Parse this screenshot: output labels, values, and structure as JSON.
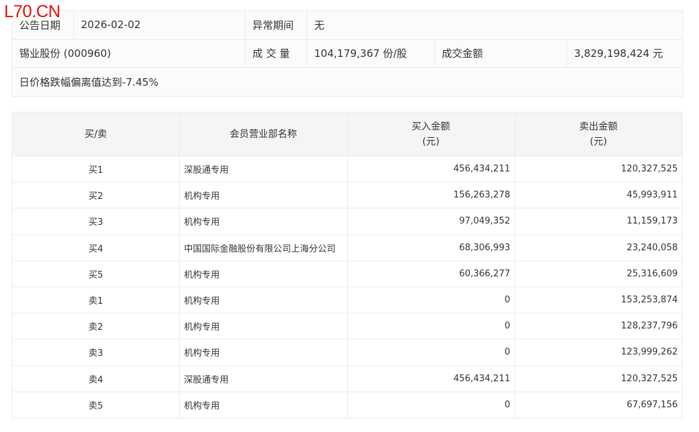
{
  "logo": "L70.CN",
  "info": {
    "date_label": "公告日期",
    "date": "2026-02-02",
    "period_label": "异常期间",
    "period": "无",
    "stock": "锡业股份 (000960)",
    "volume_label": "成 交 量",
    "volume": "104,179,367 份/股",
    "amount_label": "成交金额",
    "amount": "3,829,198,424 元",
    "reason": "日价格跌幅偏离值达到-7.45%"
  },
  "table": {
    "headers": [
      "买/卖",
      "会员营业部名称",
      "买入金额\n(元)",
      "卖出金额\n(元)"
    ],
    "rows": [
      [
        "买1",
        "深股通专用",
        "456,434,211",
        "120,327,525"
      ],
      [
        "买2",
        "机构专用",
        "156,263,278",
        "45,993,911"
      ],
      [
        "买3",
        "机构专用",
        "97,049,352",
        "11,159,173"
      ],
      [
        "买4",
        "中国国际金融股份有限公司上海分公司",
        "68,306,993",
        "23,240,058"
      ],
      [
        "买5",
        "机构专用",
        "60,366,277",
        "25,316,609"
      ],
      [
        "卖1",
        "机构专用",
        "0",
        "153,253,874"
      ],
      [
        "卖2",
        "机构专用",
        "0",
        "128,237,796"
      ],
      [
        "卖3",
        "机构专用",
        "0",
        "123,999,262"
      ],
      [
        "卖4",
        "深股通专用",
        "456,434,211",
        "120,327,525"
      ],
      [
        "卖5",
        "机构专用",
        "0",
        "67,697,156"
      ]
    ]
  }
}
